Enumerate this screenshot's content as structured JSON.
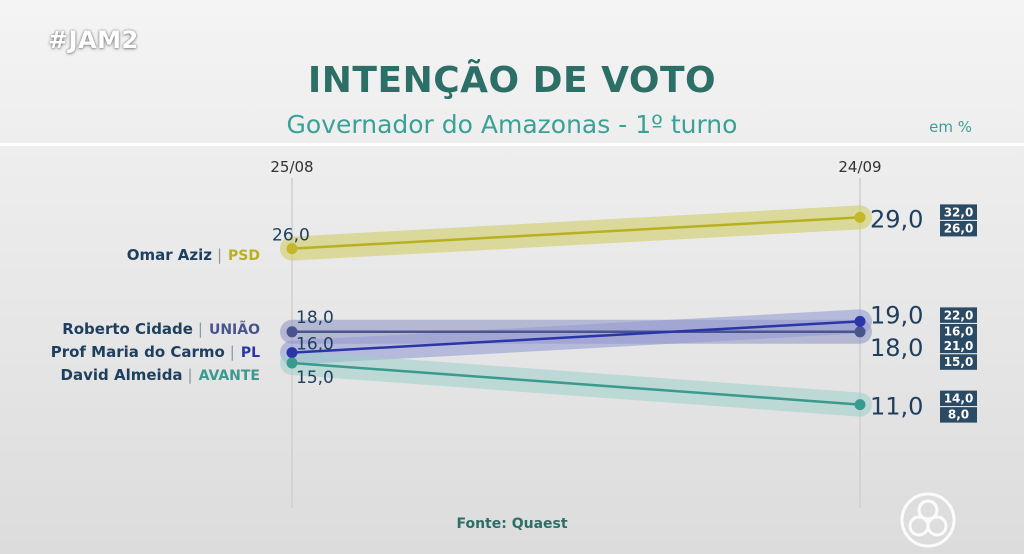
{
  "hashtag": "#JAM2",
  "title": "INTENÇÃO DE VOTO",
  "subtitle": "Governador do Amazonas - 1º turno",
  "unit": "em %",
  "source": "Fonte: Quaest",
  "chart_data": {
    "type": "line",
    "x": [
      "25/08",
      "24/09"
    ],
    "ylim": [
      5,
      35
    ],
    "series": [
      {
        "name": "Omar Aziz",
        "party": "PSD",
        "color": "#b8b020",
        "band_color": "#cfcb5c",
        "dot_color": "#c2b829",
        "values": [
          26.0,
          29.0
        ],
        "labels": [
          "26,0",
          "29,0"
        ],
        "interval": [
          "32,0",
          "26,0"
        ]
      },
      {
        "name": "Roberto Cidade",
        "party": "UNIÃO",
        "color": "#4a5590",
        "band_color": "#8e93c2",
        "dot_color": "#4a5590",
        "values": [
          18.0,
          18.0
        ],
        "labels": [
          "18,0",
          "18,0"
        ],
        "interval": [
          "21,0",
          "15,0"
        ]
      },
      {
        "name": "Prof Maria do Carmo",
        "party": "PL",
        "color": "#2a35a8",
        "band_color": "#9198d2",
        "dot_color": "#2a35a8",
        "values": [
          16.0,
          19.0
        ],
        "labels": [
          "16,0",
          "19,0"
        ],
        "interval": [
          "22,0",
          "16,0"
        ]
      },
      {
        "name": "David Almeida",
        "party": "AVANTE",
        "color": "#3a9a90",
        "band_color": "#9ed1cb",
        "dot_color": "#3a9a90",
        "values": [
          15.0,
          11.0
        ],
        "labels": [
          "15,0",
          "11,0"
        ],
        "interval": [
          "14,0",
          "8,0"
        ]
      }
    ]
  }
}
